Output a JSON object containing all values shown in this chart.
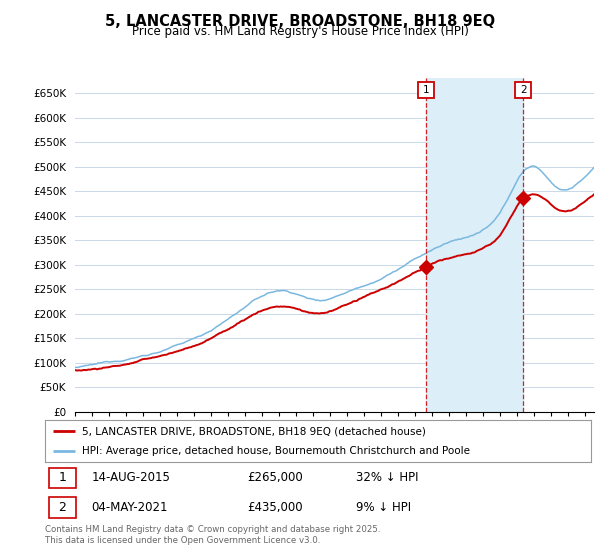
{
  "title": "5, LANCASTER DRIVE, BROADSTONE, BH18 9EQ",
  "subtitle": "Price paid vs. HM Land Registry's House Price Index (HPI)",
  "ylim": [
    0,
    680000
  ],
  "yticks": [
    0,
    50000,
    100000,
    150000,
    200000,
    250000,
    300000,
    350000,
    400000,
    450000,
    500000,
    550000,
    600000,
    650000
  ],
  "ytick_labels": [
    "£0",
    "£50K",
    "£100K",
    "£150K",
    "£200K",
    "£250K",
    "£300K",
    "£350K",
    "£400K",
    "£450K",
    "£500K",
    "£550K",
    "£600K",
    "£650K"
  ],
  "hpi_color": "#7ab8df",
  "price_color": "#cc0000",
  "shade_color": "#dceef8",
  "marker1_year": 2015.617,
  "marker1_price": 265000,
  "marker1_date_str": "14-AUG-2015",
  "marker1_hpi_pct": "32% ↓ HPI",
  "marker2_year": 2021.337,
  "marker2_price": 435000,
  "marker2_date_str": "04-MAY-2021",
  "marker2_hpi_pct": "9% ↓ HPI",
  "background_color": "#ffffff",
  "grid_color": "#c8d8e8",
  "legend_line1": "5, LANCASTER DRIVE, BROADSTONE, BH18 9EQ (detached house)",
  "legend_line2": "HPI: Average price, detached house, Bournemouth Christchurch and Poole",
  "footer": "Contains HM Land Registry data © Crown copyright and database right 2025.\nThis data is licensed under the Open Government Licence v3.0.",
  "x_start_year": 1995,
  "x_end_year": 2025
}
